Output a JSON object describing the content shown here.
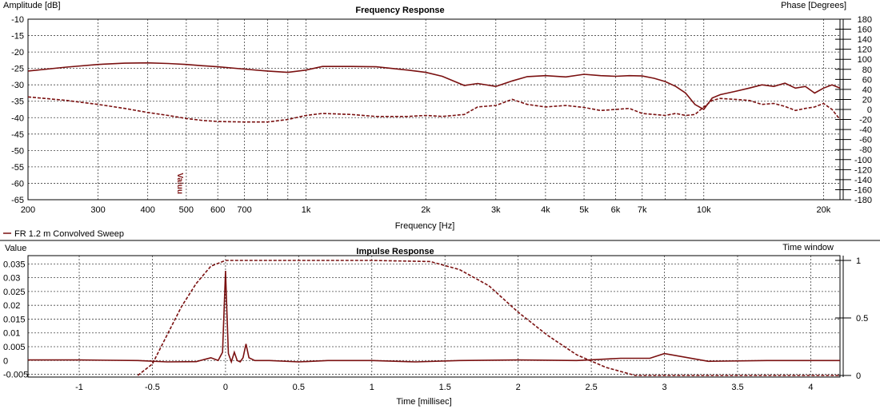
{
  "palette": {
    "trace": "#7a1010",
    "grid": "#444444",
    "background": "#ffffff"
  },
  "chart_data": [
    {
      "type": "line",
      "title": "Frequency Response",
      "xlabel": "Frequency [Hz]",
      "ylabel": "Amplitude [dB]",
      "y2label": "Phase [Degrees]",
      "xscale": "log",
      "xlim": [
        200,
        22000
      ],
      "ylim": [
        -65,
        -10
      ],
      "y2lim": [
        -180,
        180
      ],
      "x_ticks": [
        200,
        300,
        400,
        500,
        600,
        700,
        1000,
        2000,
        3000,
        4000,
        5000,
        6000,
        7000,
        10000,
        20000
      ],
      "x_tick_labels": [
        "200",
        "300",
        "400",
        "500",
        "600",
        "700",
        "1k",
        "2k",
        "3k",
        "4k",
        "5k",
        "6k",
        "7k",
        "10k",
        "20k"
      ],
      "y_ticks": [
        -10,
        -15,
        -20,
        -25,
        -30,
        -35,
        -40,
        -45,
        -50,
        -55,
        -60,
        -65
      ],
      "y2_ticks": [
        180,
        160,
        140,
        120,
        100,
        80,
        60,
        40,
        20,
        0,
        -20,
        -40,
        -60,
        -80,
        -100,
        -120,
        -140,
        -160,
        -180
      ],
      "grid": true,
      "legend": {
        "position": "bottom-left",
        "entries": [
          "FR 1.2 m Convolved Sweep"
        ]
      },
      "annotation": "Valuu",
      "series": [
        {
          "name": "FR 1.2 m Convolved Sweep",
          "axis": "left",
          "style": "solid",
          "x": [
            200,
            250,
            300,
            350,
            400,
            450,
            500,
            550,
            600,
            700,
            800,
            900,
            1000,
            1100,
            1300,
            1500,
            1800,
            2000,
            2200,
            2500,
            2700,
            3000,
            3300,
            3600,
            4000,
            4500,
            5000,
            5500,
            6000,
            6500,
            7000,
            7500,
            8000,
            8500,
            9000,
            9500,
            10000,
            10500,
            11000,
            12000,
            13000,
            14000,
            15000,
            16000,
            17000,
            18000,
            19000,
            20000,
            21000,
            22000
          ],
          "y": [
            -25.8,
            -24.6,
            -23.8,
            -23.4,
            -23.3,
            -23.5,
            -23.8,
            -24.2,
            -24.5,
            -25.2,
            -25.8,
            -26.2,
            -25.5,
            -24.4,
            -24.4,
            -24.5,
            -25.5,
            -26.2,
            -27.4,
            -30.2,
            -29.6,
            -30.5,
            -28.8,
            -27.5,
            -27.2,
            -27.6,
            -26.8,
            -27.2,
            -27.4,
            -27.2,
            -27.3,
            -28.0,
            -29.0,
            -30.5,
            -32.5,
            -36.0,
            -37.5,
            -34.0,
            -33.0,
            -32.0,
            -31.0,
            -30.0,
            -30.5,
            -29.5,
            -31.0,
            -30.5,
            -32.5,
            -31.0,
            -30.0,
            -31.0
          ]
        },
        {
          "name": "Phase",
          "axis": "right",
          "style": "dashed",
          "x": [
            200,
            250,
            300,
            350,
            400,
            450,
            500,
            550,
            600,
            700,
            800,
            900,
            1000,
            1100,
            1300,
            1500,
            1800,
            2000,
            2200,
            2500,
            2700,
            3000,
            3300,
            3600,
            4000,
            4500,
            5000,
            5500,
            6000,
            6500,
            7000,
            7500,
            8000,
            8500,
            9000,
            9500,
            10000,
            10500,
            11000,
            12000,
            13000,
            14000,
            15000,
            16000,
            17000,
            18000,
            19000,
            20000,
            21000,
            22000
          ],
          "y": [
            25,
            18,
            10,
            2,
            -6,
            -12,
            -18,
            -22,
            -24,
            -25,
            -25,
            -20,
            -12,
            -8,
            -10,
            -14,
            -14,
            -12,
            -14,
            -10,
            5,
            8,
            20,
            10,
            5,
            8,
            4,
            -2,
            0,
            2,
            -8,
            -10,
            -12,
            -8,
            -12,
            -10,
            5,
            18,
            22,
            20,
            18,
            10,
            12,
            6,
            -2,
            2,
            5,
            12,
            0,
            -20
          ]
        }
      ]
    },
    {
      "type": "line",
      "title": "Impulse Response",
      "xlabel": "Time [millisec]",
      "ylabel": "Value",
      "y2label": "Time window",
      "xlim": [
        -1.35,
        4.2
      ],
      "ylim": [
        -0.006,
        0.038
      ],
      "y2lim": [
        0,
        1
      ],
      "x_ticks": [
        -1,
        -0.5,
        0,
        0.5,
        1,
        1.5,
        2,
        2.5,
        3,
        3.5,
        4
      ],
      "y_ticks": [
        0.035,
        0.03,
        0.025,
        0.02,
        0.015,
        0.01,
        0.005,
        0,
        -0.005
      ],
      "y2_ticks": [
        1,
        0.5,
        0
      ],
      "grid": true,
      "series": [
        {
          "name": "Impulse",
          "axis": "left",
          "style": "solid",
          "x": [
            -1.35,
            -1.0,
            -0.6,
            -0.4,
            -0.2,
            -0.1,
            -0.05,
            -0.02,
            0,
            0.01,
            0.02,
            0.04,
            0.06,
            0.08,
            0.1,
            0.12,
            0.14,
            0.16,
            0.2,
            0.3,
            0.5,
            0.7,
            1.0,
            1.3,
            1.6,
            2.0,
            2.4,
            2.7,
            2.9,
            3.0,
            3.3,
            3.7,
            4.2
          ],
          "y": [
            0.0002,
            0.0002,
            0.0,
            -0.0005,
            -0.0004,
            0.001,
            0.0,
            0.003,
            0.0325,
            0.017,
            0.0025,
            -0.0005,
            0.003,
            0.0,
            -0.0005,
            0.001,
            0.006,
            0.001,
            0.0,
            0.0,
            -0.0005,
            0.0,
            0.0,
            -0.0005,
            0.0,
            0.0002,
            0.0,
            0.0008,
            0.0008,
            0.0025,
            -0.0003,
            0.0,
            0.0
          ]
        },
        {
          "name": "Time window",
          "axis": "right",
          "style": "dashed",
          "x": [
            -0.6,
            -0.5,
            -0.4,
            -0.3,
            -0.2,
            -0.1,
            0,
            0.5,
            1.0,
            1.4,
            1.6,
            1.8,
            2.0,
            2.2,
            2.4,
            2.6,
            2.8,
            3.2,
            4.2
          ],
          "y": [
            0,
            0.1,
            0.35,
            0.6,
            0.8,
            0.95,
            1,
            1,
            1,
            0.99,
            0.92,
            0.78,
            0.55,
            0.35,
            0.18,
            0.07,
            0.0,
            0.0,
            0.0
          ]
        }
      ]
    }
  ]
}
